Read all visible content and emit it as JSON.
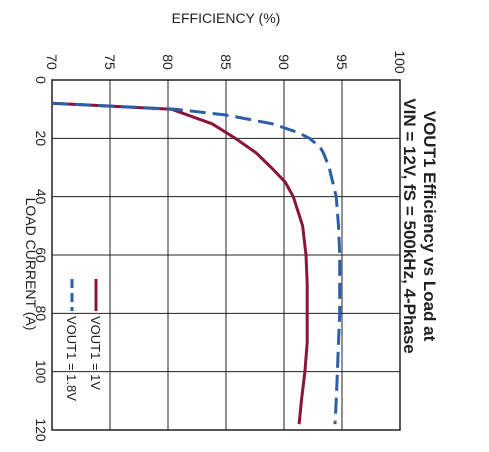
{
  "chart_data": {
    "type": "line",
    "orientation": "rotated-90-clockwise",
    "title_line1": "VOUT1 Efficiency vs Load at",
    "title_line2": "VIN = 12V, fS = 500kHz, 4-Phase",
    "xlabel": "LOAD CURRENT (A)",
    "ylabel": "EFFICIENCY (%)",
    "xlim": [
      0,
      120
    ],
    "ylim": [
      70,
      100
    ],
    "x_ticks": [
      0,
      20,
      40,
      60,
      80,
      100,
      120
    ],
    "y_ticks": [
      70,
      75,
      80,
      85,
      90,
      95,
      100
    ],
    "grid": true,
    "legend_position": "bottom-left",
    "series": [
      {
        "name": "VOUT1 = 1V",
        "color": "#8b1538",
        "dash": "solid",
        "x": [
          8,
          10,
          15,
          20,
          25,
          30,
          35,
          40,
          50,
          60,
          70,
          80,
          90,
          100,
          110,
          118
        ],
        "y": [
          70,
          80.3,
          83.8,
          85.8,
          87.6,
          88.9,
          90.1,
          90.8,
          91.6,
          91.9,
          92.0,
          92.0,
          92.0,
          91.8,
          91.5,
          91.3
        ]
      },
      {
        "name": "VOUT1 = 1.8V",
        "color": "#2e5ea8",
        "dash": "dashed",
        "x": [
          8,
          10,
          12,
          15,
          18,
          20,
          23,
          25,
          30,
          35,
          40,
          50,
          60,
          70,
          80,
          90,
          100,
          110,
          118
        ],
        "y": [
          70,
          80.6,
          85.0,
          89.0,
          91.2,
          92.2,
          93.1,
          93.4,
          93.9,
          94.2,
          94.5,
          94.7,
          94.8,
          94.8,
          94.8,
          94.7,
          94.6,
          94.5,
          94.4
        ]
      }
    ]
  }
}
